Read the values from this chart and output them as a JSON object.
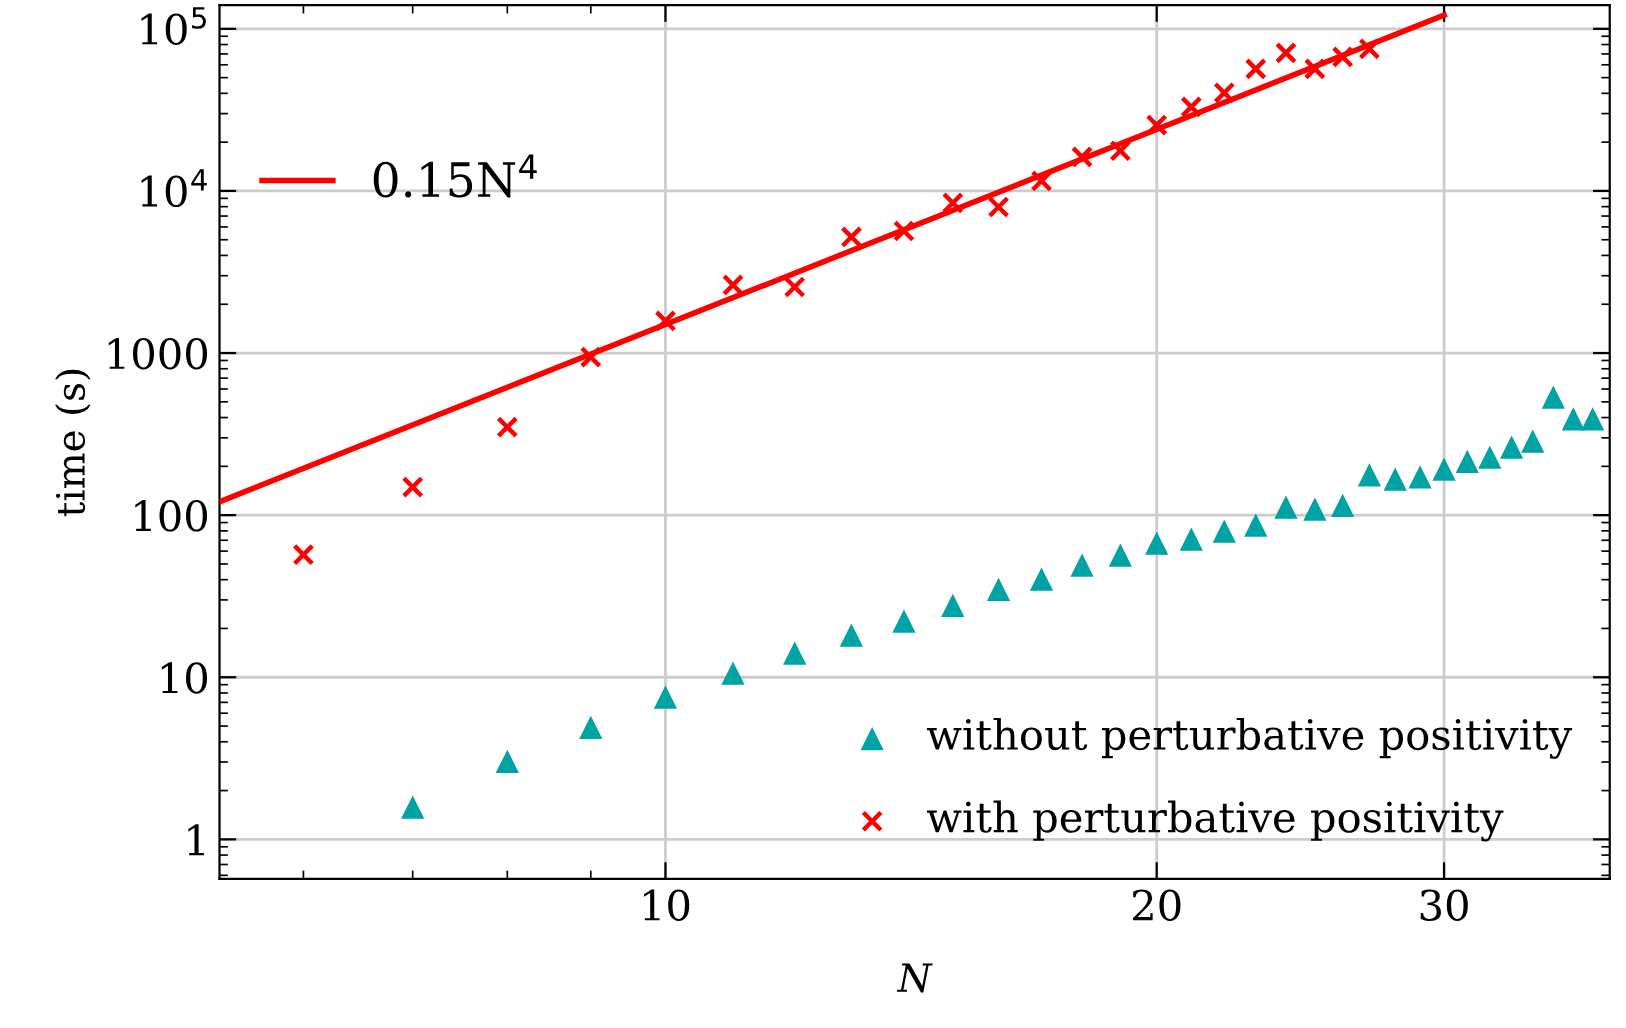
{
  "chart_data": {
    "type": "scatter",
    "xlabel": "N",
    "ylabel": "time (s)",
    "log": "xy",
    "grid": true,
    "legend": "bottom right",
    "xlim": [
      5.33,
      37.9
    ],
    "xticks": [
      10,
      20,
      30
    ],
    "ylim": [
      0.57,
      140000
    ],
    "yticks": [
      1,
      10,
      100,
      1000,
      {
        "value": 10000,
        "label": "10$^{4}$"
      },
      {
        "value": 100000,
        "label": "10$^{5}$"
      }
    ],
    "series": [
      {
        "name": "0.15N$^{4}$",
        "type": "line",
        "color": "#ff0000",
        "marker": "none",
        "line_style": "solid",
        "x": [
          5.33,
          30
        ],
        "values": [
          121,
          121500
        ]
      },
      {
        "name": "without perturbative positivity",
        "color": "#00a3a3",
        "marker": "triangle",
        "x": [
          7,
          8,
          9,
          10,
          11,
          12,
          13,
          14,
          15,
          16,
          17,
          18,
          19,
          20,
          21,
          22,
          23,
          24,
          25,
          26,
          27,
          28,
          29,
          30,
          31,
          32,
          33,
          34,
          35,
          36,
          37
        ],
        "values": [
          1.58,
          3.03,
          4.91,
          7.53,
          10.6,
          14.1,
          18.2,
          22.2,
          27.8,
          34.9,
          40.3,
          49.1,
          56.6,
          67.2,
          71.1,
          79.6,
          86.7,
          112,
          109,
          115,
          177,
          167,
          172,
          192,
          215,
          228,
          263,
          286,
          535,
          392,
          392
        ]
      },
      {
        "name": "with perturbative positivity",
        "color": "#ff0000",
        "marker": "cross",
        "x": [
          6,
          7,
          8,
          9,
          10,
          11,
          12,
          13,
          14,
          15,
          16,
          17,
          18,
          19,
          20,
          21,
          22,
          23,
          24,
          25,
          26,
          27
        ],
        "values": [
          57,
          149,
          349,
          945,
          1577,
          2630,
          2555,
          5200,
          5660,
          8430,
          7960,
          11530,
          16200,
          17700,
          25500,
          33000,
          40300,
          56600,
          71100,
          56600,
          67100,
          75300
        ]
      }
    ]
  }
}
